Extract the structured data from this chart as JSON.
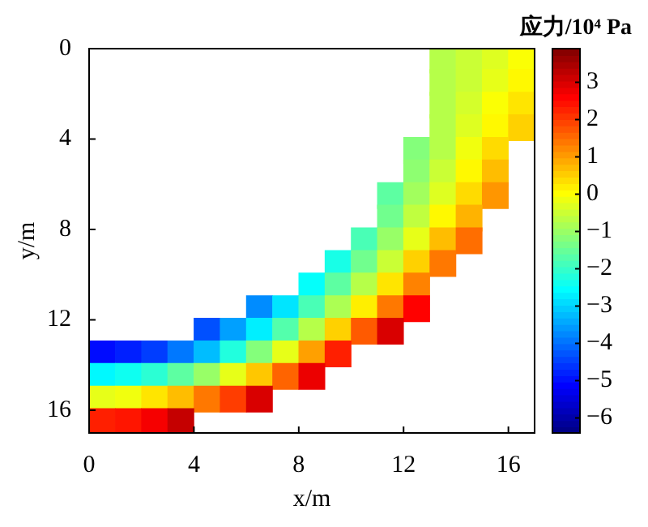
{
  "chart_data": {
    "type": "scatter",
    "xlabel": "x/m",
    "ylabel": "y/m",
    "clabel": "应力/10⁴ Pa",
    "marker": "square",
    "xlim": [
      0,
      17
    ],
    "ylim": [
      17,
      0
    ],
    "xticks": [
      0,
      4,
      8,
      12,
      16
    ],
    "yticks": [
      0,
      4,
      8,
      12,
      16
    ],
    "clim": [
      -6.4,
      3.9
    ],
    "cticks": [
      -6,
      -5,
      -4,
      -3,
      -2,
      -1,
      0,
      1,
      2,
      3
    ],
    "x": [
      13.5,
      14.5,
      15.5,
      16.5,
      13.5,
      14.5,
      15.5,
      16.5,
      13.5,
      14.5,
      15.5,
      16.5,
      13.5,
      14.5,
      15.5,
      16.5,
      12.5,
      13.5,
      14.5,
      15.5,
      12.5,
      13.5,
      14.5,
      15.5,
      11.5,
      12.5,
      13.5,
      14.5,
      15.5,
      11.5,
      12.5,
      13.5,
      14.5,
      10.5,
      11.5,
      12.5,
      13.5,
      14.5,
      9.5,
      10.5,
      11.5,
      12.5,
      13.5,
      8.5,
      9.5,
      10.5,
      11.5,
      12.5,
      6.5,
      7.5,
      8.5,
      9.5,
      10.5,
      11.5,
      12.5,
      4.5,
      5.5,
      6.5,
      7.5,
      8.5,
      9.5,
      10.5,
      11.5,
      0.5,
      1.5,
      2.5,
      3.5,
      4.5,
      5.5,
      6.5,
      7.5,
      8.5,
      9.5,
      0.5,
      1.5,
      2.5,
      3.5,
      4.5,
      5.5,
      6.5,
      7.5,
      8.5,
      0.5,
      1.5,
      2.5,
      3.5,
      4.5,
      5.5,
      6.5,
      0.5,
      1.5,
      2.5,
      3.5
    ],
    "values": [
      0.5,
      0.5,
      0.5,
      0.5,
      1.5,
      1.5,
      1.5,
      1.5,
      2.5,
      2.5,
      2.5,
      2.5,
      3.5,
      3.5,
      3.5,
      3.5,
      4.5,
      4.5,
      4.5,
      4.5,
      5.5,
      5.5,
      5.5,
      5.5,
      6.5,
      6.5,
      6.5,
      6.5,
      6.5,
      7.5,
      7.5,
      7.5,
      7.5,
      8.5,
      8.5,
      8.5,
      8.5,
      8.5,
      9.5,
      9.5,
      9.5,
      9.5,
      9.5,
      10.5,
      10.5,
      10.5,
      10.5,
      10.5,
      11.5,
      11.5,
      11.5,
      11.5,
      11.5,
      11.5,
      11.5,
      12.5,
      12.5,
      12.5,
      12.5,
      12.5,
      12.5,
      12.5,
      12.5,
      13.5,
      13.5,
      13.5,
      13.5,
      13.5,
      13.5,
      13.5,
      13.5,
      13.5,
      13.5,
      14.5,
      14.5,
      14.5,
      14.5,
      14.5,
      14.5,
      14.5,
      14.5,
      14.5,
      15.5,
      15.5,
      15.5,
      15.5,
      15.5,
      15.5,
      15.5,
      16.5,
      16.5,
      16.5,
      16.5
    ],
    "cvalues": [
      -0.7,
      -0.5,
      -0.3,
      0,
      -0.7,
      -0.5,
      -0.2,
      0.1,
      -0.7,
      -0.4,
      0,
      0.3,
      -0.7,
      -0.3,
      0.1,
      0.5,
      -1.2,
      -0.7,
      -0.1,
      0.4,
      -1.1,
      -0.5,
      0.1,
      0.7,
      -1.6,
      -0.9,
      -0.3,
      0.4,
      1.1,
      -1.4,
      -0.6,
      0.1,
      0.8,
      -1.8,
      -1.0,
      -0.2,
      0.7,
      1.5,
      -2.3,
      -1.4,
      -0.5,
      0.5,
      1.4,
      -2.5,
      -1.6,
      -0.7,
      0.3,
      1.3,
      -3.7,
      -2.8,
      -1.8,
      -0.8,
      0.2,
      1.4,
      2.6,
      -4.3,
      -3.5,
      -2.7,
      -1.7,
      -0.7,
      0.5,
      1.7,
      3.0,
      -5.0,
      -4.8,
      -4.5,
      -3.9,
      -3.2,
      -2.2,
      -1.2,
      -0.2,
      1.0,
      2.3,
      -2.6,
      -2.4,
      -2.1,
      -1.6,
      -1.0,
      -0.2,
      0.6,
      1.6,
      2.8,
      -0.2,
      -0.1,
      0.3,
      0.7,
      1.4,
      2.0,
      3.0,
      2.3,
      2.4,
      2.7,
      3.2
    ]
  }
}
